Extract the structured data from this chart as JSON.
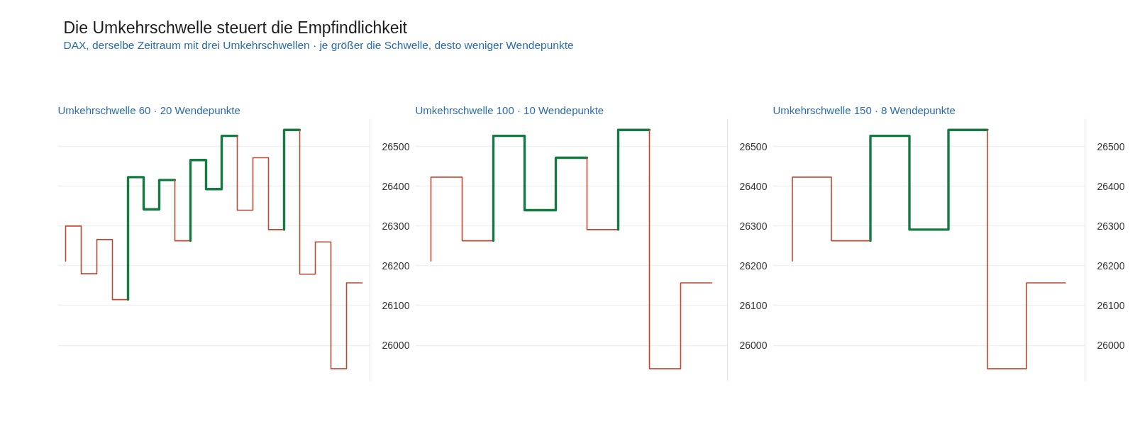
{
  "chart_data": [
    {
      "type": "other",
      "title": "Die Umkehrschwelle steuert die Empfindlichkeit",
      "subtitle": "DAX, derselbe Zeitraum mit drei Umkehrschwellen · je größer die Schwelle, desto weniger Wendepunkte"
    },
    {
      "type": "step",
      "title": "Umkehrschwelle 60  ·  20 Wendepunkte",
      "categories": [
        null,
        null,
        null,
        null,
        null,
        null,
        null,
        null,
        null,
        null,
        null,
        null,
        null,
        null,
        null,
        null,
        null,
        null,
        null,
        null
      ],
      "series": [
        {
          "color": "#c0462f",
          "values": [
            26212,
            26300,
            26180,
            26266,
            26115,
            null,
            null,
            null,
            null,
            null,
            null,
            null,
            null,
            null,
            null,
            null,
            null,
            null,
            null,
            null
          ]
        },
        {
          "color": "#157a42",
          "values": [
            null,
            null,
            null,
            null,
            26115,
            26423,
            26342,
            26416,
            null,
            null,
            null,
            null,
            null,
            null,
            null,
            null,
            null,
            null,
            null,
            null
          ]
        },
        {
          "color": "#c0462f",
          "values": [
            null,
            null,
            null,
            null,
            null,
            null,
            null,
            26416,
            26263,
            null,
            null,
            null,
            null,
            null,
            null,
            null,
            null,
            null,
            null,
            null
          ]
        },
        {
          "color": "#157a42",
          "values": [
            null,
            null,
            null,
            null,
            null,
            null,
            null,
            null,
            26263,
            26466,
            26393,
            26527,
            null,
            null,
            null,
            null,
            null,
            null,
            null,
            null
          ]
        },
        {
          "color": "#c0462f",
          "values": [
            null,
            null,
            null,
            null,
            null,
            null,
            null,
            null,
            null,
            null,
            null,
            26527,
            26340,
            26472,
            26291,
            null,
            null,
            null,
            null,
            null
          ]
        },
        {
          "color": "#157a42",
          "values": [
            null,
            null,
            null,
            null,
            null,
            null,
            null,
            null,
            null,
            null,
            null,
            null,
            null,
            null,
            26291,
            26542,
            null,
            null,
            null,
            null
          ]
        },
        {
          "color": "#c0462f",
          "values": [
            null,
            null,
            null,
            null,
            null,
            null,
            null,
            null,
            null,
            null,
            null,
            null,
            null,
            null,
            null,
            26542,
            26179,
            26260,
            25941,
            26157
          ]
        }
      ],
      "ylim": [
        25910,
        26570
      ],
      "yticks": [
        26000,
        26100,
        26200,
        26300,
        26400,
        26500
      ],
      "grid": "y",
      "tick_labels": "y"
    },
    {
      "type": "step",
      "title": "Umkehrschwelle 100  ·  10 Wendepunkte",
      "categories": [
        null,
        null,
        null,
        null,
        null,
        null,
        null,
        null,
        null,
        null
      ],
      "series": [
        {
          "color": "#c0462f",
          "values": [
            26212,
            26423,
            26263,
            null,
            null,
            null,
            null,
            null,
            null,
            null
          ]
        },
        {
          "color": "#157a42",
          "values": [
            null,
            null,
            26263,
            26527,
            26340,
            26472,
            null,
            null,
            null,
            null
          ]
        },
        {
          "color": "#c0462f",
          "values": [
            null,
            null,
            null,
            null,
            null,
            26472,
            26291,
            null,
            null,
            null
          ]
        },
        {
          "color": "#157a42",
          "values": [
            null,
            null,
            null,
            null,
            null,
            null,
            26291,
            26542,
            null,
            null
          ]
        },
        {
          "color": "#c0462f",
          "values": [
            null,
            null,
            null,
            null,
            null,
            null,
            null,
            26542,
            25941,
            26157
          ]
        }
      ],
      "ylim": [
        25910,
        26570
      ],
      "yticks": [
        26000,
        26100,
        26200,
        26300,
        26400,
        26500
      ],
      "grid": "y",
      "tick_labels": "y"
    },
    {
      "type": "step",
      "title": "Umkehrschwelle 150  ·  8 Wendepunkte",
      "categories": [
        null,
        null,
        null,
        null,
        null,
        null,
        null,
        null
      ],
      "series": [
        {
          "color": "#c0462f",
          "values": [
            26212,
            26423,
            26263,
            null,
            null,
            null,
            null,
            null
          ]
        },
        {
          "color": "#157a42",
          "values": [
            null,
            null,
            26263,
            26527,
            26291,
            26542,
            null,
            null
          ]
        },
        {
          "color": "#c0462f",
          "values": [
            null,
            null,
            null,
            null,
            null,
            26542,
            25941,
            26157
          ]
        }
      ],
      "ylim": [
        25910,
        26570
      ],
      "yticks": [
        26000,
        26100,
        26200,
        26300,
        26400,
        26500
      ],
      "grid": "y",
      "tick_labels": "y"
    }
  ]
}
